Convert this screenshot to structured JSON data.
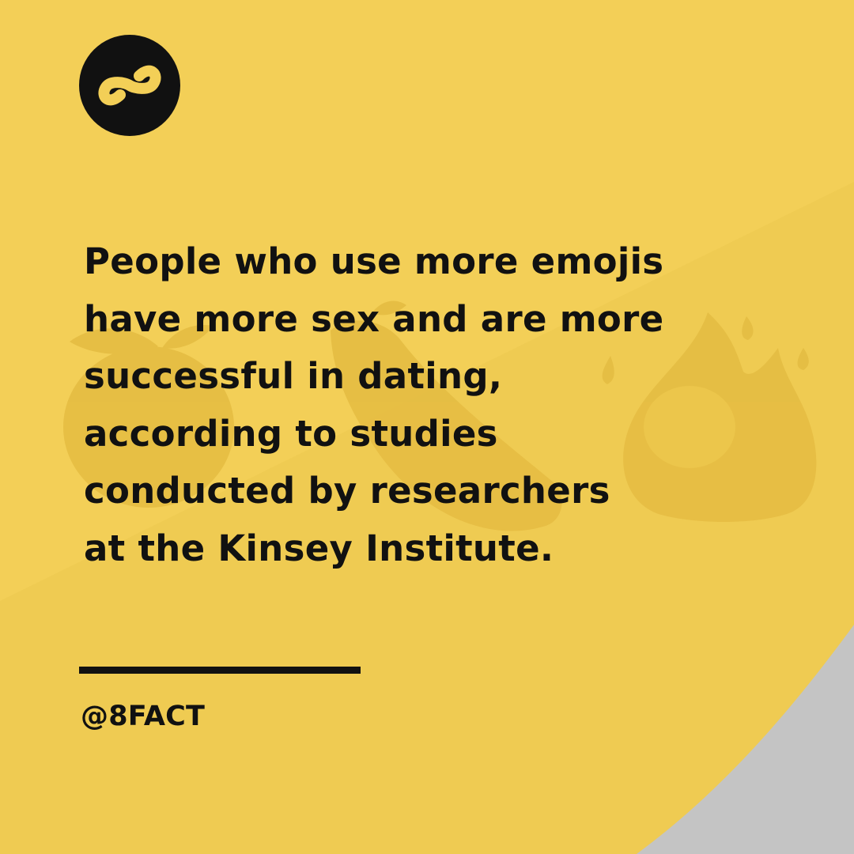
{
  "post": {
    "fact_lines": [
      "People who use more emojis",
      "have more sex and are more",
      "successful in dating,",
      "according to studies",
      "conducted by researchers",
      "at the Kinsey Institute."
    ],
    "handle": "@8FACT"
  },
  "logo": {
    "icon": "figure-eight-icon",
    "fill_color": "#111111",
    "glyph_color": "#f3cf57"
  },
  "background": {
    "base_color": "#f3cf57",
    "shade_color": "#efcb52",
    "corner_color": "#c4c4c4",
    "emoji_watermarks": [
      "peach-emoji",
      "eggplant-emoji",
      "fire-emoji"
    ]
  },
  "colors": {
    "text": "#111111",
    "divider": "#111111"
  }
}
